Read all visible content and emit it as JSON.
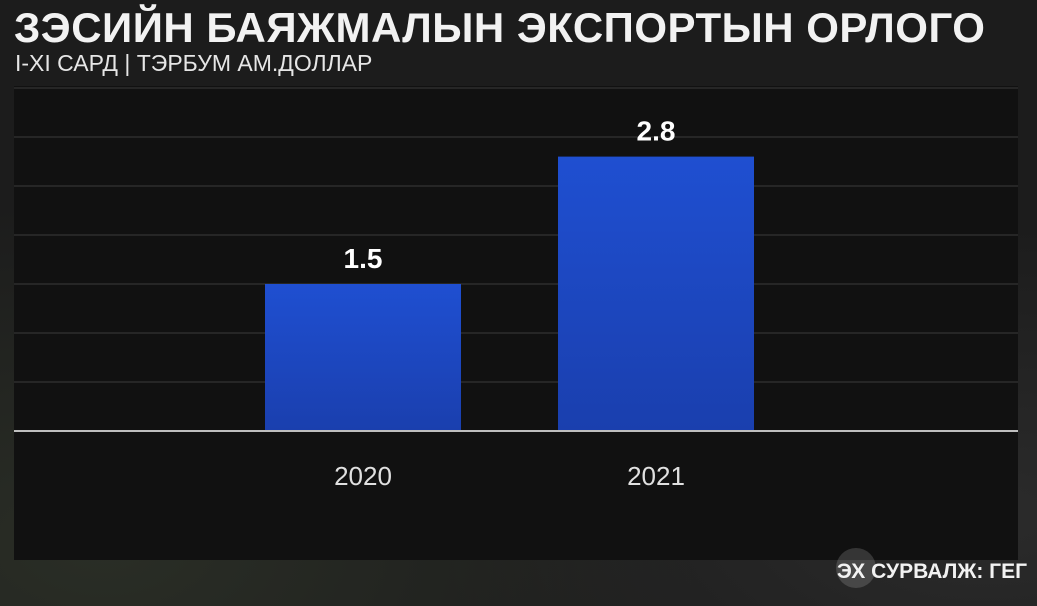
{
  "header": {
    "title": "ЗЭСИЙН БАЯЖМАЛЫН ЭКСПОРТЫН ОРЛОГО",
    "subtitle": "I-XI САРД | ТЭРБУМ АМ.ДОЛЛАР"
  },
  "footer": {
    "source": "ЭХ СУРВАЛЖ: ГЕГ"
  },
  "colors": {
    "bar_top": "#1f4fd1",
    "bar_bottom": "#1a3fae",
    "panel": "#111111",
    "gridline": "#3a3a3a",
    "baseline": "#bfbfbf",
    "label": "#ffffff",
    "tick_label": "#e0e0e0"
  },
  "chart_data": {
    "type": "bar",
    "categories": [
      "2020",
      "2021"
    ],
    "values": [
      1.5,
      2.8
    ],
    "data_labels": [
      "1.5",
      "2.8"
    ],
    "ylim": [
      0,
      3.5
    ],
    "grid": true,
    "legend": "none"
  }
}
